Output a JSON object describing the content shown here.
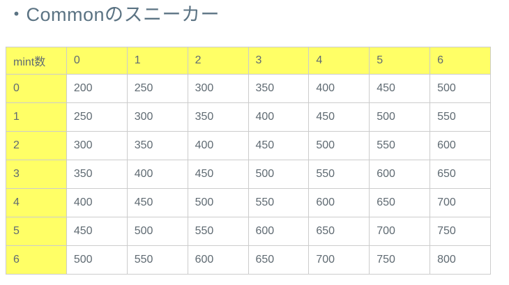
{
  "page": {
    "title": "・Commonのスニーカー"
  },
  "table": {
    "header": [
      "mint数",
      "0",
      "1",
      "2",
      "3",
      "4",
      "5",
      "6"
    ],
    "rows": [
      {
        "label": "0",
        "values": [
          "200",
          "250",
          "300",
          "350",
          "400",
          "450",
          "500"
        ]
      },
      {
        "label": "1",
        "values": [
          "250",
          "300",
          "350",
          "400",
          "450",
          "500",
          "550"
        ]
      },
      {
        "label": "2",
        "values": [
          "300",
          "350",
          "400",
          "450",
          "500",
          "550",
          "600"
        ]
      },
      {
        "label": "3",
        "values": [
          "350",
          "400",
          "450",
          "500",
          "550",
          "600",
          "650"
        ]
      },
      {
        "label": "4",
        "values": [
          "400",
          "450",
          "500",
          "550",
          "600",
          "650",
          "700"
        ]
      },
      {
        "label": "5",
        "values": [
          "450",
          "500",
          "550",
          "600",
          "650",
          "700",
          "750"
        ]
      },
      {
        "label": "6",
        "values": [
          "500",
          "550",
          "600",
          "650",
          "700",
          "750",
          "800"
        ]
      }
    ],
    "colors": {
      "header_bg": "#ffff66",
      "border": "#cccccc",
      "outer_border": "#b7b7b7",
      "cell_text": "#5f6a72",
      "title_text": "#5b7383"
    }
  }
}
